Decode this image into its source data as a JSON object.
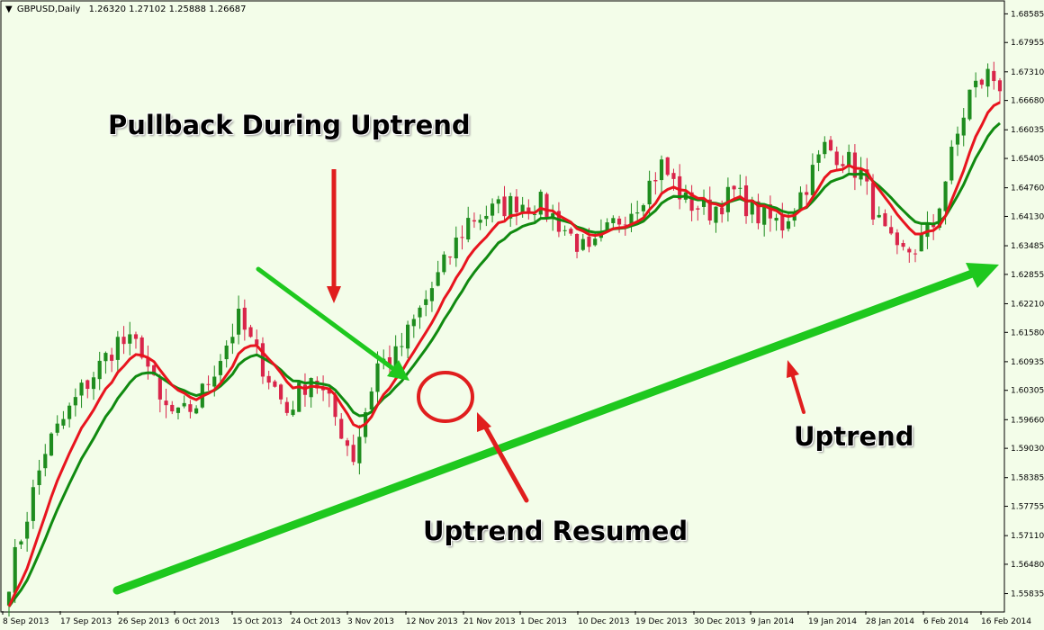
{
  "header": {
    "arrow": "▼",
    "symbol": "GBPUSD,Daily",
    "ohlc": "1.26320 1.27102 1.25888 1.26687"
  },
  "annotations": {
    "pullback": "Pullback During Uptrend",
    "uptrend": "Uptrend",
    "resumed": "Uptrend Resumed"
  },
  "colors": {
    "background": "#f3fde9",
    "bull": "#1e8c1e",
    "bear": "#d9254a",
    "ema_fast": "#e8141e",
    "ema_slow": "#108a10",
    "arrow_red": "#e01e1e",
    "arrow_green": "#1ec81e"
  },
  "chart_data": {
    "type": "candlestick",
    "title": "GBPUSD,Daily",
    "ylim": [
      1.5545,
      1.6885
    ],
    "y_ticks": [
      "1.68585",
      "1.67955",
      "1.67310",
      "1.66680",
      "1.66035",
      "1.65405",
      "1.64760",
      "1.64130",
      "1.63485",
      "1.62855",
      "1.62210",
      "1.61580",
      "1.60935",
      "1.60305",
      "1.59660",
      "1.59030",
      "1.58385",
      "1.57755",
      "1.57110",
      "1.56480",
      "1.55835"
    ],
    "x_ticks": [
      "8 Sep 2013",
      "17 Sep 2013",
      "26 Sep 2013",
      "6 Oct 2013",
      "15 Oct 2013",
      "24 Oct 2013",
      "3 Nov 2013",
      "12 Nov 2013",
      "21 Nov 2013",
      "1 Dec 2013",
      "10 Dec 2013",
      "19 Dec 2013",
      "30 Dec 2013",
      "9 Jan 2014",
      "19 Jan 2014",
      "28 Jan 2014",
      "6 Feb 2014",
      "16 Feb 2014"
    ],
    "key_points": [
      [
        0,
        1.5615
      ],
      [
        6,
        1.59
      ],
      [
        12,
        1.603
      ],
      [
        18,
        1.6138
      ],
      [
        22,
        1.6123
      ],
      [
        25,
        1.6
      ],
      [
        28,
        1.597
      ],
      [
        31,
        1.6
      ],
      [
        38,
        1.6186
      ],
      [
        42,
        1.6085
      ],
      [
        46,
        1.5985
      ],
      [
        50,
        1.6065
      ],
      [
        53,
        1.6
      ],
      [
        57,
        1.5885
      ],
      [
        61,
        1.6088
      ],
      [
        64,
        1.6105
      ],
      [
        68,
        1.6205
      ],
      [
        72,
        1.6305
      ],
      [
        76,
        1.6405
      ],
      [
        80,
        1.6425
      ],
      [
        84,
        1.6445
      ],
      [
        88,
        1.644
      ],
      [
        92,
        1.6385
      ],
      [
        96,
        1.6325
      ],
      [
        100,
        1.6395
      ],
      [
        104,
        1.6445
      ],
      [
        108,
        1.6525
      ],
      [
        112,
        1.6445
      ],
      [
        116,
        1.6425
      ],
      [
        120,
        1.6465
      ],
      [
        124,
        1.6415
      ],
      [
        128,
        1.6395
      ],
      [
        132,
        1.6485
      ],
      [
        135,
        1.6565
      ],
      [
        138,
        1.6545
      ],
      [
        141,
        1.6505
      ],
      [
        144,
        1.6395
      ],
      [
        147,
        1.6325
      ],
      [
        150,
        1.6345
      ],
      [
        153,
        1.6395
      ],
      [
        156,
        1.6545
      ],
      [
        159,
        1.6685
      ],
      [
        162,
        1.6725
      ],
      [
        164,
        1.6705
      ]
    ],
    "ema_fast_label": "",
    "ema_slow_label": ""
  }
}
